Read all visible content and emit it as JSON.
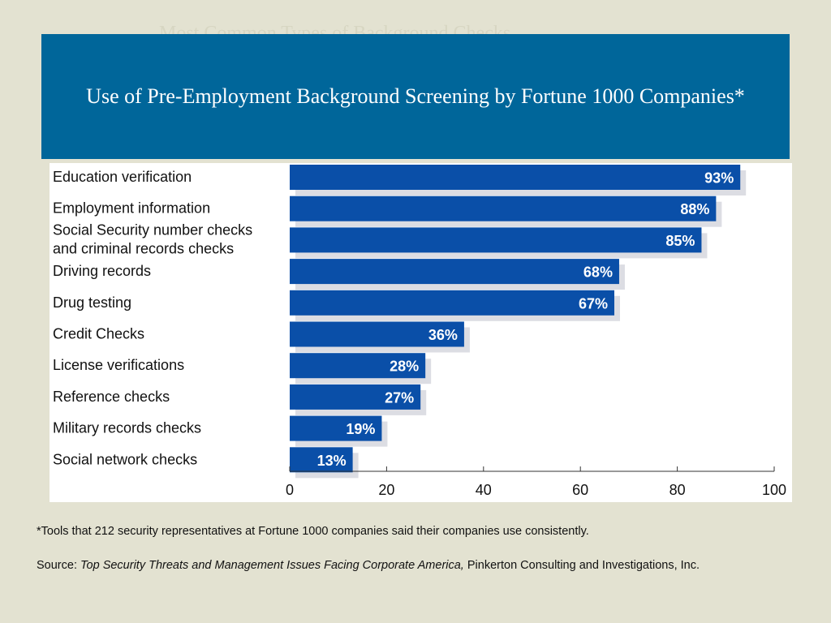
{
  "ghost_heading": "Most Common Types of Background Checks",
  "slide": {
    "footnote": "*Tools that 212 security representatives at Fortune 1000 companies said their companies use consistently.",
    "source_prefix": "Source:",
    "source_title": "Top Security Threats and Management Issues Facing Corporate America,",
    "source_org": "Pinkerton Consulting and Investigations, Inc."
  },
  "colors": {
    "bar": "#0a4fa8",
    "bar_shadow": "#dcdde3",
    "title_panel": "#00669a",
    "background": "#e3e2d1"
  },
  "chart_data": {
    "type": "bar",
    "orientation": "horizontal",
    "title": "Use of Pre-Employment Background Screening by Fortune 1000 Companies*",
    "categories": [
      "Education verification",
      "Employment information",
      "Social Security number checks\nand criminal records checks",
      "Driving records",
      "Drug testing",
      "Credit Checks",
      "License verifications",
      "Reference checks",
      "Military records checks",
      "Social network checks"
    ],
    "values": [
      93,
      88,
      85,
      68,
      67,
      36,
      28,
      27,
      19,
      13
    ],
    "value_labels": [
      "93%",
      "88%",
      "85%",
      "68%",
      "67%",
      "36%",
      "28%",
      "27%",
      "19%",
      "13%"
    ],
    "xlim": [
      0,
      100
    ],
    "xticks": [
      0,
      20,
      40,
      60,
      80,
      100
    ],
    "xlabel": "",
    "ylabel": "",
    "grid": false,
    "legend": "none"
  }
}
